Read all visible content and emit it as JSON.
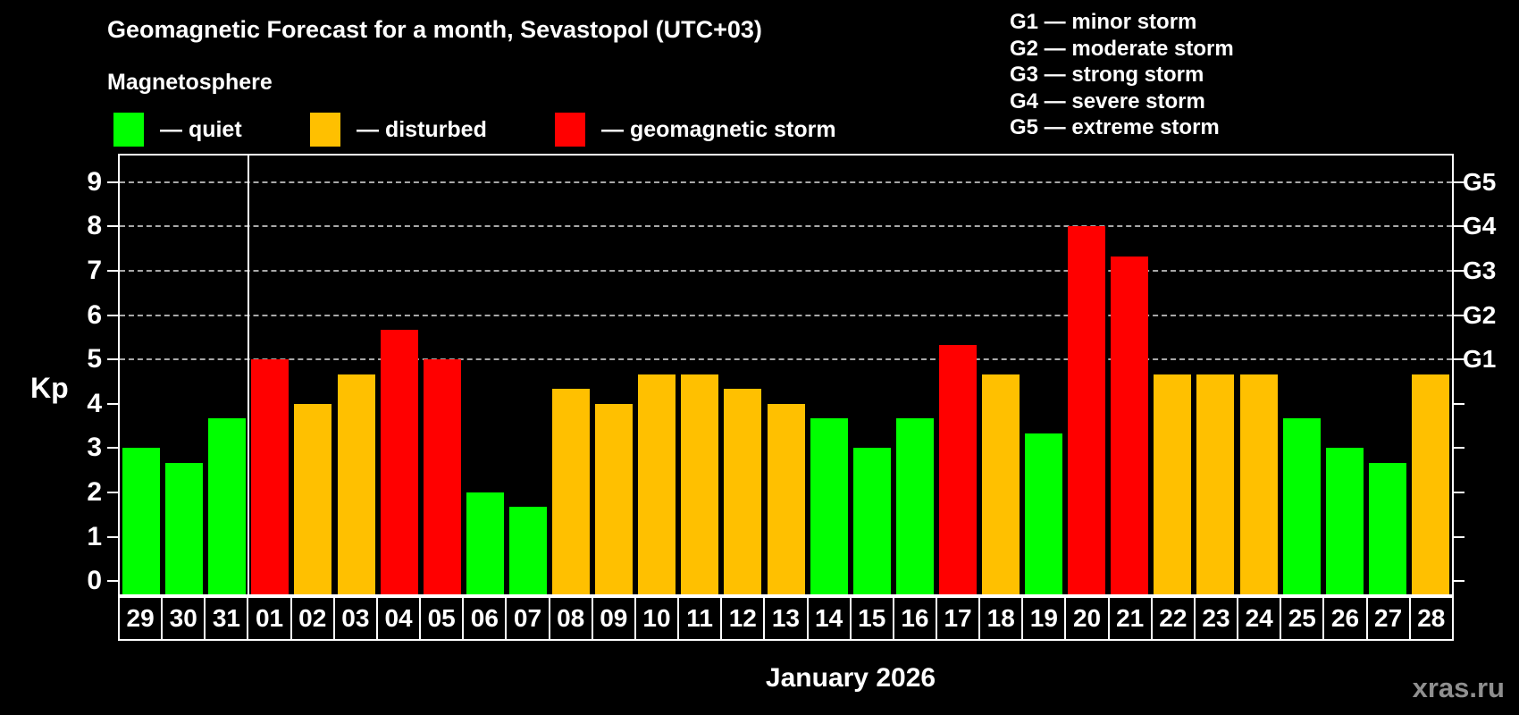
{
  "title": "Geomagnetic Forecast for a month, Sevastopol (UTC+03)",
  "subtitle": "Magnetosphere",
  "legend": {
    "items": [
      {
        "key": "quiet",
        "label": "— quiet",
        "color": "#00ff00"
      },
      {
        "key": "disturbed",
        "label": "— disturbed",
        "color": "#ffc000"
      },
      {
        "key": "storm",
        "label": "— geomagnetic storm",
        "color": "#ff0000"
      }
    ]
  },
  "g_legend": [
    "G1 — minor storm",
    "G2 — moderate storm",
    "G3 — strong storm",
    "G4 — severe storm",
    "G5 — extreme storm"
  ],
  "x_axis": {
    "month_label": "January 2026"
  },
  "watermark": "xras.ru",
  "chart_data": {
    "type": "bar",
    "title": "Geomagnetic Forecast for a month, Sevastopol (UTC+03)",
    "ylabel": "Kp",
    "xlabel": "January 2026",
    "ylim": [
      -0.3,
      9.6
    ],
    "grid": "dashed horizontal at Kp 5-9",
    "gridlines_kp": [
      5,
      6,
      7,
      8,
      9
    ],
    "left_ticks": [
      0,
      1,
      2,
      3,
      4,
      5,
      6,
      7,
      8,
      9
    ],
    "right_ticks": [
      0,
      1,
      2,
      3,
      4,
      5,
      6,
      7,
      8,
      9
    ],
    "right_tick_labels": {
      "5": "G1",
      "6": "G2",
      "7": "G3",
      "8": "G4",
      "9": "G5"
    },
    "separator_after_index": 2,
    "status_colors": {
      "quiet": "#00ff00",
      "disturbed": "#ffc000",
      "storm": "#ff0000"
    },
    "categories": [
      "29",
      "30",
      "31",
      "01",
      "02",
      "03",
      "04",
      "05",
      "06",
      "07",
      "08",
      "09",
      "10",
      "11",
      "12",
      "13",
      "14",
      "15",
      "16",
      "17",
      "18",
      "19",
      "20",
      "21",
      "22",
      "23",
      "24",
      "25",
      "26",
      "27",
      "28"
    ],
    "values": [
      3.0,
      2.67,
      3.67,
      5.0,
      4.0,
      4.67,
      5.67,
      5.0,
      2.0,
      1.67,
      4.33,
      4.0,
      4.67,
      4.67,
      4.33,
      4.0,
      3.67,
      3.0,
      3.67,
      5.33,
      4.67,
      3.33,
      8.0,
      7.33,
      4.67,
      4.67,
      4.67,
      3.67,
      3.0,
      2.67,
      4.67
    ],
    "statuses": [
      "quiet",
      "quiet",
      "quiet",
      "storm",
      "disturbed",
      "disturbed",
      "storm",
      "storm",
      "quiet",
      "quiet",
      "disturbed",
      "disturbed",
      "disturbed",
      "disturbed",
      "disturbed",
      "disturbed",
      "quiet",
      "quiet",
      "quiet",
      "storm",
      "disturbed",
      "quiet",
      "storm",
      "storm",
      "disturbed",
      "disturbed",
      "disturbed",
      "quiet",
      "quiet",
      "quiet",
      "disturbed"
    ]
  }
}
